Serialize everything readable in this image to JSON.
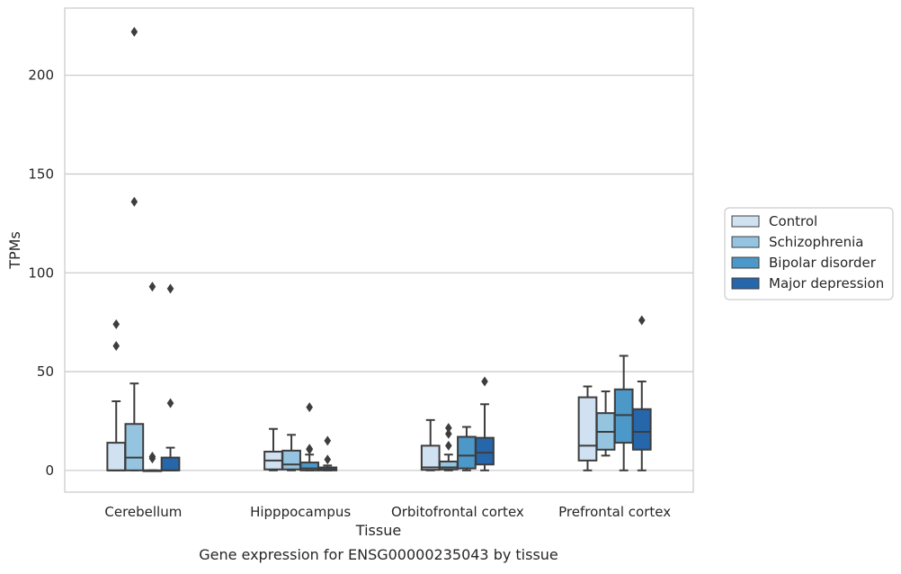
{
  "chart_data": {
    "type": "box",
    "xlabel": "Tissue",
    "ylabel": "TPMs",
    "caption": "Gene expression for ENSG00000235043 by tissue",
    "ylim": [
      -11,
      234
    ],
    "yticks": [
      0,
      50,
      100,
      150,
      200
    ],
    "grid": "horizontal",
    "legend_placement": "right",
    "categories": [
      "Cerebellum",
      "Hipppocampus",
      "Orbitofrontal cortex",
      "Prefrontal cortex"
    ],
    "series": [
      {
        "name": "Control",
        "color": "#d0e1f2",
        "boxes": [
          {
            "min": 0,
            "q1": 0,
            "median": 0,
            "q3": 14,
            "max": 35,
            "outliers": [
              63,
              74
            ]
          },
          {
            "min": 0,
            "q1": 0.5,
            "median": 5,
            "q3": 9.5,
            "max": 21,
            "outliers": []
          },
          {
            "min": 0,
            "q1": 0.3,
            "median": 1.5,
            "q3": 12.5,
            "max": 25.5,
            "outliers": []
          },
          {
            "min": 0,
            "q1": 5,
            "median": 12.5,
            "q3": 37,
            "max": 42.5,
            "outliers": []
          }
        ]
      },
      {
        "name": "Schizophrenia",
        "color": "#94c4df",
        "boxes": [
          {
            "min": 0,
            "q1": 0,
            "median": 6.5,
            "q3": 23.5,
            "max": 44,
            "outliers": [
              136,
              222
            ]
          },
          {
            "min": 0,
            "q1": 0.5,
            "median": 3,
            "q3": 10,
            "max": 18,
            "outliers": []
          },
          {
            "min": 0,
            "q1": 0.5,
            "median": 1.5,
            "q3": 4.5,
            "max": 8,
            "outliers": [
              12.5,
              18.5,
              21.5
            ]
          },
          {
            "min": 7.5,
            "q1": 10.5,
            "median": 19.5,
            "q3": 29,
            "max": 40,
            "outliers": []
          }
        ]
      },
      {
        "name": "Bipolar disorder",
        "color": "#4b98c9",
        "boxes": [
          {
            "min": 0,
            "q1": 0,
            "median": 0,
            "q3": 0,
            "max": 0,
            "outliers": [
              6,
              7,
              93
            ]
          },
          {
            "min": 0,
            "q1": 0,
            "median": 1,
            "q3": 4,
            "max": 8,
            "outliers": [
              10.5,
              11,
              32
            ]
          },
          {
            "min": 0,
            "q1": 1,
            "median": 7.5,
            "q3": 17,
            "max": 22,
            "outliers": []
          },
          {
            "min": 0,
            "q1": 14,
            "median": 28,
            "q3": 41,
            "max": 58,
            "outliers": []
          }
        ]
      },
      {
        "name": "Major depression",
        "color": "#2666aa",
        "boxes": [
          {
            "min": 0,
            "q1": 0,
            "median": 0,
            "q3": 6.5,
            "max": 11.5,
            "outliers": [
              34,
              92
            ]
          },
          {
            "min": 0,
            "q1": 0,
            "median": 0.5,
            "q3": 1.5,
            "max": 2.5,
            "outliers": [
              5.5,
              15
            ]
          },
          {
            "min": 0,
            "q1": 3,
            "median": 9,
            "q3": 16.5,
            "max": 33.5,
            "outliers": [
              45
            ]
          },
          {
            "min": 0,
            "q1": 10.5,
            "median": 19.5,
            "q3": 31,
            "max": 45,
            "outliers": [
              76
            ]
          }
        ]
      }
    ]
  }
}
